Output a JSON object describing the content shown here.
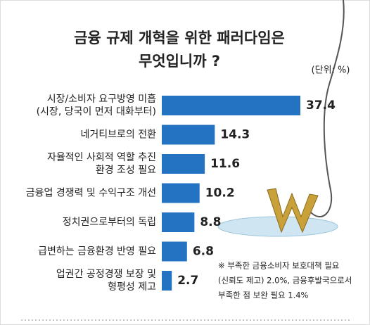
{
  "chart_data": {
    "type": "bar",
    "orientation": "horizontal",
    "title": [
      "금융 규제 개혁을 위한 패러다임은",
      "무엇입니까 ?"
    ],
    "unit": "(단위: %)",
    "categories": [
      [
        "시장/소비자 요구방영 미흡",
        "(시장, 당국이 먼저 대화부터)"
      ],
      [
        "네거티브로의 전환"
      ],
      [
        "자율적인 사회적 역할 추진",
        "환경 조성 필요"
      ],
      [
        "금융업 경쟁력 및 수익구조 개선"
      ],
      [
        "정치권으로부터의 독립"
      ],
      [
        "급변하는 금융환경 반영 필요"
      ],
      [
        "업권간 공정경쟁 보장 및",
        "형평성 제고"
      ]
    ],
    "values": [
      37.4,
      14.3,
      11.6,
      10.2,
      8.8,
      6.8,
      2.7
    ],
    "color": "#2473c2",
    "note": [
      "※ 부족한 금융소비자 보호대책 필요",
      "(신뢰도 제고) 2.0%, 금융후발국으로서",
      "부족한 점 보완 필요 1.4%"
    ]
  }
}
